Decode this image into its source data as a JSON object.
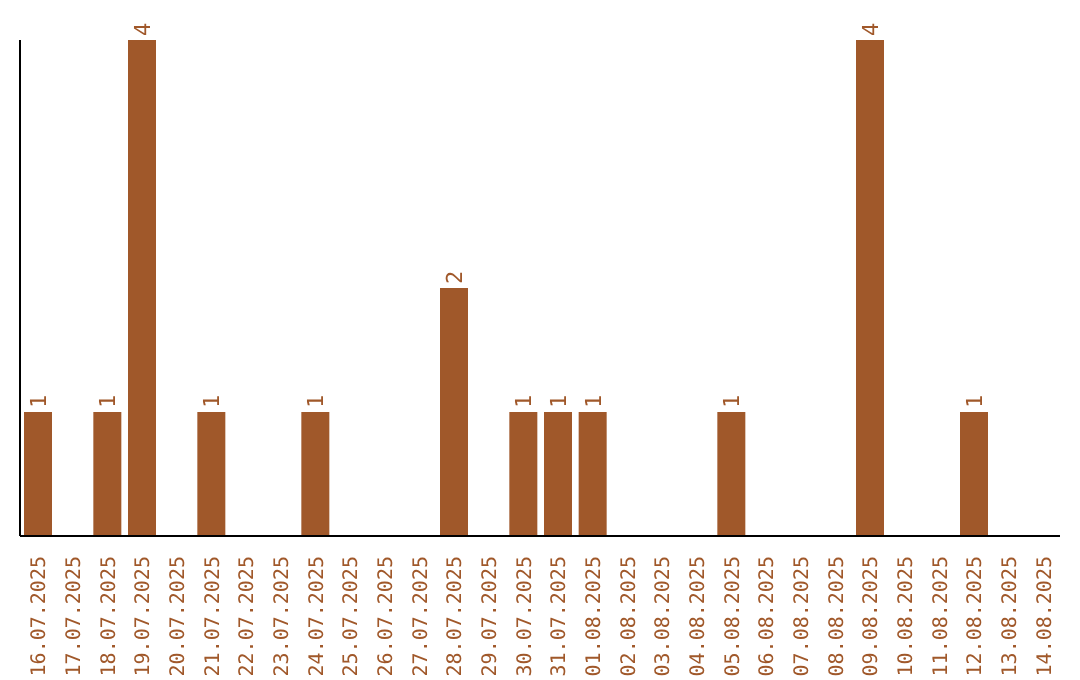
{
  "chart_data": {
    "type": "bar",
    "categories": [
      "16.07.2025",
      "17.07.2025",
      "18.07.2025",
      "19.07.2025",
      "20.07.2025",
      "21.07.2025",
      "22.07.2025",
      "23.07.2025",
      "24.07.2025",
      "25.07.2025",
      "26.07.2025",
      "27.07.2025",
      "28.07.2025",
      "29.07.2025",
      "30.07.2025",
      "31.07.2025",
      "01.08.2025",
      "02.08.2025",
      "03.08.2025",
      "04.08.2025",
      "05.08.2025",
      "06.08.2025",
      "07.08.2025",
      "08.08.2025",
      "09.08.2025",
      "10.08.2025",
      "11.08.2025",
      "12.08.2025",
      "13.08.2025",
      "14.08.2025"
    ],
    "values": [
      1,
      0,
      1,
      4,
      0,
      1,
      0,
      0,
      1,
      0,
      0,
      0,
      2,
      0,
      1,
      1,
      1,
      0,
      0,
      0,
      1,
      0,
      0,
      0,
      4,
      0,
      0,
      1,
      0,
      0
    ],
    "value_labels": [
      "1",
      null,
      "1",
      "4",
      null,
      "1",
      null,
      null,
      "1",
      null,
      null,
      null,
      "2",
      null,
      "1",
      "1",
      "1",
      null,
      null,
      null,
      "1",
      null,
      null,
      null,
      "4",
      null,
      null,
      "1",
      null,
      null
    ],
    "color": "#a0582a",
    "ylim": [
      0,
      4
    ],
    "tick_labels": "x",
    "grid": false,
    "legend": false
  }
}
